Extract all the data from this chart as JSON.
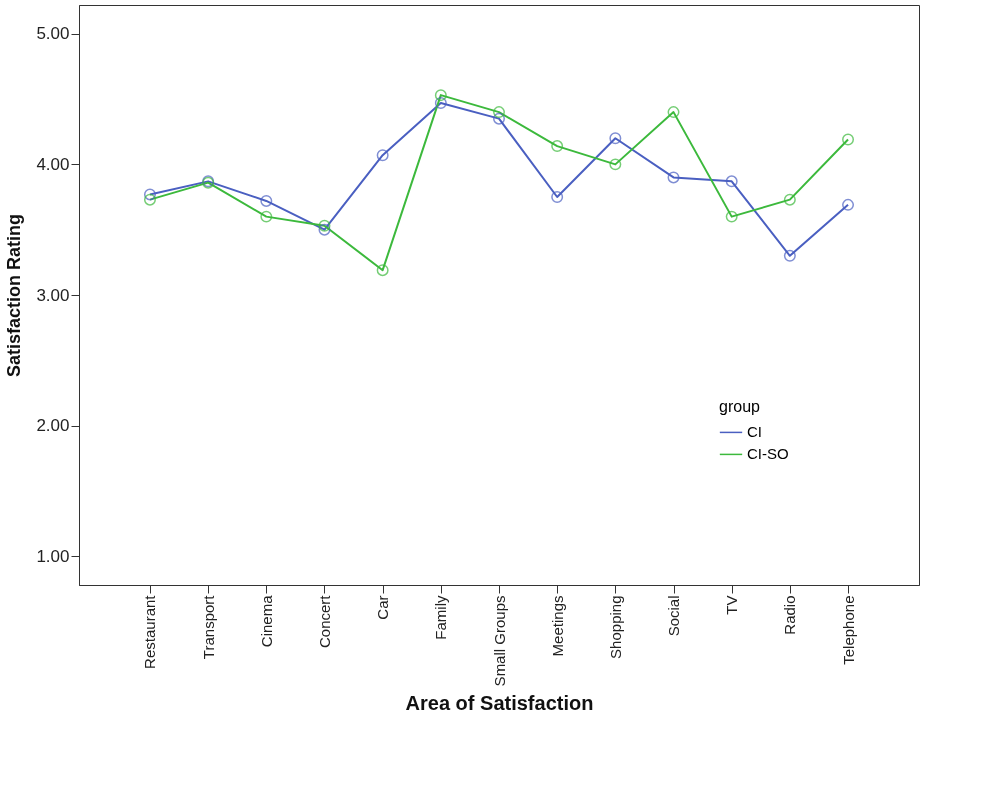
{
  "chart_data": {
    "type": "line",
    "xlabel": "Area of Satisfaction",
    "ylabel": "Satisfaction Rating",
    "legend_title": "group",
    "categories": [
      "Restaurant",
      "Transport",
      "Cinema",
      "Concert",
      "Car",
      "Family",
      "Small Groups",
      "Meetings",
      "Shopping",
      "Social",
      "TV",
      "Radio",
      "Telephone"
    ],
    "series": [
      {
        "name": "CI",
        "color": "#4a5fc1",
        "values": [
          3.77,
          3.87,
          3.72,
          3.5,
          4.07,
          4.47,
          4.35,
          3.75,
          4.2,
          3.9,
          3.87,
          3.3,
          3.69
        ]
      },
      {
        "name": "CI-SO",
        "color": "#3cb93c",
        "values": [
          3.73,
          3.86,
          3.6,
          3.53,
          3.19,
          4.53,
          4.4,
          4.14,
          4.0,
          4.4,
          3.6,
          3.73,
          4.19
        ]
      }
    ],
    "ylim": [
      0.78,
      5.22
    ],
    "yticks": [
      {
        "value": 1,
        "label": "1.00"
      },
      {
        "value": 2,
        "label": "2.00"
      },
      {
        "value": 3,
        "label": "3.00"
      },
      {
        "value": 4,
        "label": "4.00"
      },
      {
        "value": 5,
        "label": "5.00"
      }
    ],
    "grid": false,
    "legend": "right",
    "marker": "circle",
    "line_style": "solid"
  }
}
